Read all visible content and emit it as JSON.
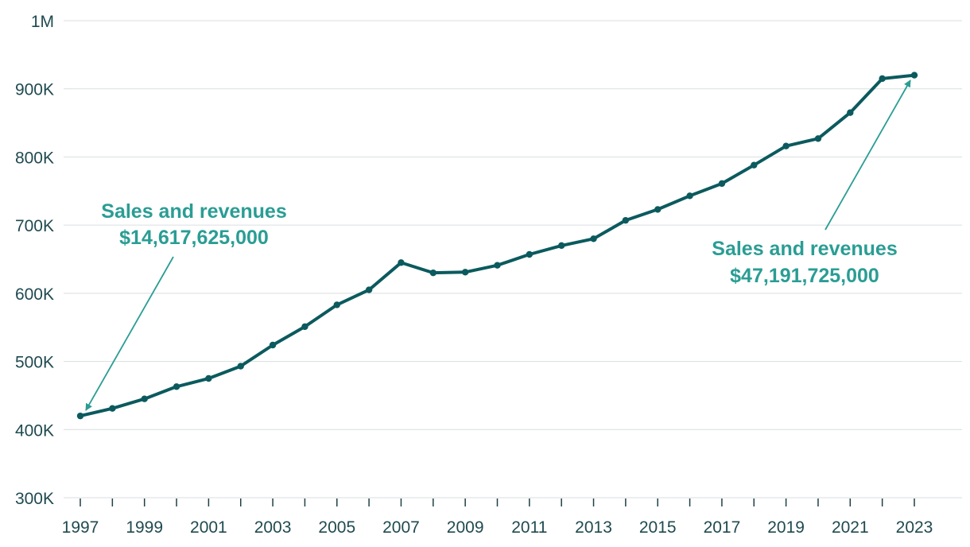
{
  "chart_data": {
    "type": "line",
    "title": "",
    "xlabel": "",
    "ylabel": "",
    "x": [
      1997,
      1998,
      1999,
      2000,
      2001,
      2002,
      2003,
      2004,
      2005,
      2006,
      2007,
      2008,
      2009,
      2010,
      2011,
      2012,
      2013,
      2014,
      2015,
      2016,
      2017,
      2018,
      2019,
      2020,
      2021,
      2022,
      2023
    ],
    "series": [
      {
        "name": "Value",
        "values": [
          420000,
          431000,
          445000,
          463000,
          475000,
          493000,
          524000,
          551000,
          583000,
          605000,
          645000,
          630000,
          631000,
          641000,
          657000,
          670000,
          680000,
          707000,
          723000,
          743000,
          761000,
          788000,
          816000,
          827000,
          865000,
          915000,
          920000
        ]
      }
    ],
    "ylim": [
      300000,
      1000000
    ],
    "yticks": [
      300000,
      400000,
      500000,
      600000,
      700000,
      800000,
      900000,
      1000000
    ],
    "ytick_labels": [
      "300K",
      "400K",
      "500K",
      "600K",
      "700K",
      "800K",
      "900K",
      "1M"
    ],
    "xlim": [
      1997,
      2023
    ],
    "xtick_labels": [
      "1997",
      "1999",
      "2001",
      "2003",
      "2005",
      "2007",
      "2009",
      "2011",
      "2013",
      "2015",
      "2017",
      "2019",
      "2021",
      "2023"
    ],
    "grid": true,
    "line_color": "#0b5a5e",
    "annotation_color": "#2a9d94",
    "annotations": [
      {
        "line1": "Sales and revenues",
        "line2": "$14,617,625,000",
        "target_x": 1997,
        "target_y": 420000
      },
      {
        "line1": "Sales and revenues",
        "line2": "$47,191,725,000",
        "target_x": 2023,
        "target_y": 920000
      }
    ]
  }
}
